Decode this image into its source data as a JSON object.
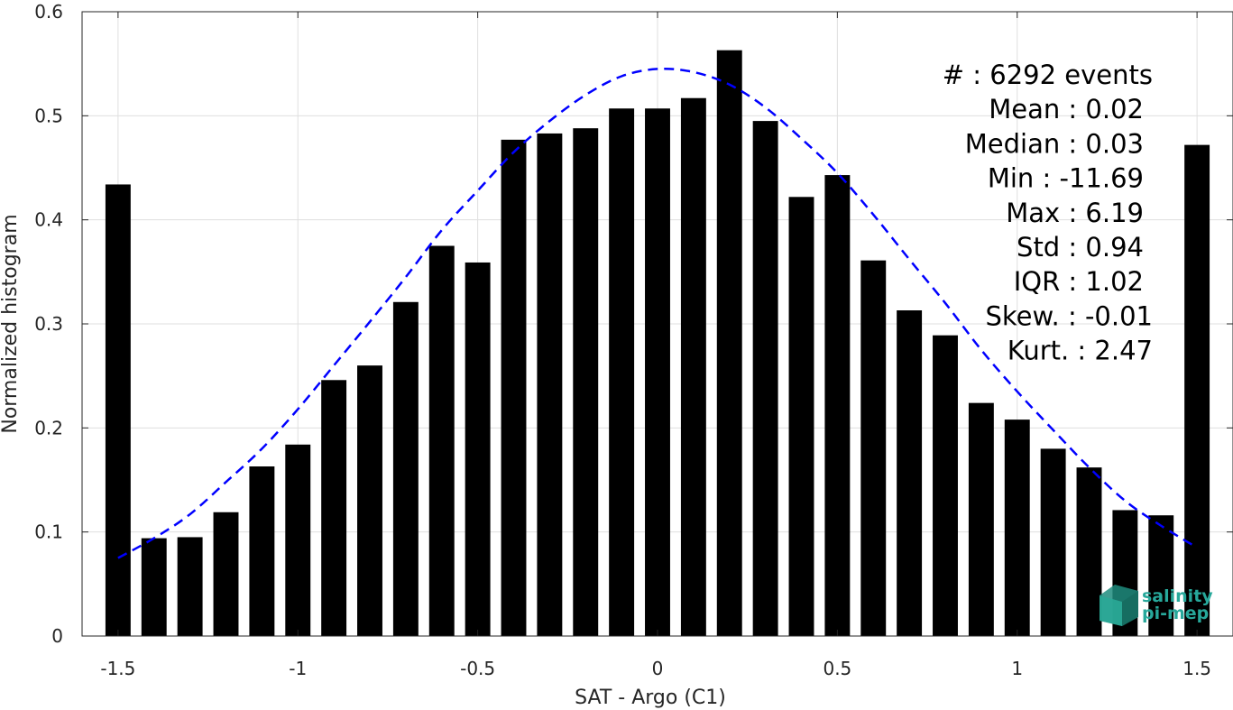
{
  "chart_data": {
    "type": "bar",
    "xlabel": "SAT - Argo (C1)",
    "ylabel": "Normalized histogram",
    "xlim": [
      -1.6,
      1.6
    ],
    "ylim": [
      0,
      0.6
    ],
    "xticks": [
      -1.5,
      -1,
      -0.5,
      0,
      0.5,
      1,
      1.5
    ],
    "xtick_labels": [
      "-1.5",
      "-1",
      "-0.5",
      "0",
      "0.5",
      "1",
      "1.5"
    ],
    "yticks": [
      0,
      0.1,
      0.2,
      0.3,
      0.4,
      0.5,
      0.6
    ],
    "ytick_labels": [
      "0",
      "0.1",
      "0.2",
      "0.3",
      "0.4",
      "0.5",
      "0.6"
    ],
    "grid": true,
    "bar_color": "#000000",
    "bars": {
      "x": [
        -1.5,
        -1.4,
        -1.3,
        -1.2,
        -1.1,
        -1.0,
        -0.9,
        -0.8,
        -0.7,
        -0.6,
        -0.5,
        -0.4,
        -0.3,
        -0.2,
        -0.1,
        0.0,
        0.1,
        0.2,
        0.3,
        0.4,
        0.5,
        0.6,
        0.7,
        0.8,
        0.9,
        1.0,
        1.1,
        1.2,
        1.3,
        1.4,
        1.5
      ],
      "values": [
        0.434,
        0.094,
        0.095,
        0.119,
        0.163,
        0.184,
        0.246,
        0.26,
        0.321,
        0.375,
        0.359,
        0.477,
        0.483,
        0.488,
        0.507,
        0.507,
        0.517,
        0.563,
        0.495,
        0.422,
        0.443,
        0.361,
        0.313,
        0.289,
        0.224,
        0.208,
        0.18,
        0.162,
        0.121,
        0.116,
        0.472
      ]
    },
    "fit_curve": {
      "style": "dashed",
      "color": "#0000ff",
      "x": [
        -1.5,
        -1.4,
        -1.3,
        -1.2,
        -1.1,
        -1.0,
        -0.9,
        -0.8,
        -0.7,
        -0.6,
        -0.5,
        -0.4,
        -0.3,
        -0.2,
        -0.1,
        0.0,
        0.1,
        0.2,
        0.3,
        0.4,
        0.5,
        0.6,
        0.7,
        0.8,
        0.9,
        1.0,
        1.1,
        1.2,
        1.3,
        1.4,
        1.5
      ],
      "y": [
        0.075,
        0.094,
        0.117,
        0.148,
        0.18,
        0.218,
        0.26,
        0.302,
        0.345,
        0.39,
        0.428,
        0.465,
        0.495,
        0.52,
        0.538,
        0.545,
        0.542,
        0.53,
        0.508,
        0.478,
        0.445,
        0.405,
        0.362,
        0.32,
        0.275,
        0.235,
        0.198,
        0.162,
        0.13,
        0.106,
        0.085
      ]
    },
    "stats": [
      "#  : 6292 events",
      "Mean : 0.02",
      "Median : 0.03",
      "Min : -11.69",
      "Max : 6.19",
      "Std : 0.94",
      "IQR : 1.02",
      "Skew. : -0.01",
      "Kurt. : 2.47"
    ]
  },
  "logo": {
    "line1": "salinity",
    "line2": "pi-mep",
    "color": "#27a89b"
  }
}
